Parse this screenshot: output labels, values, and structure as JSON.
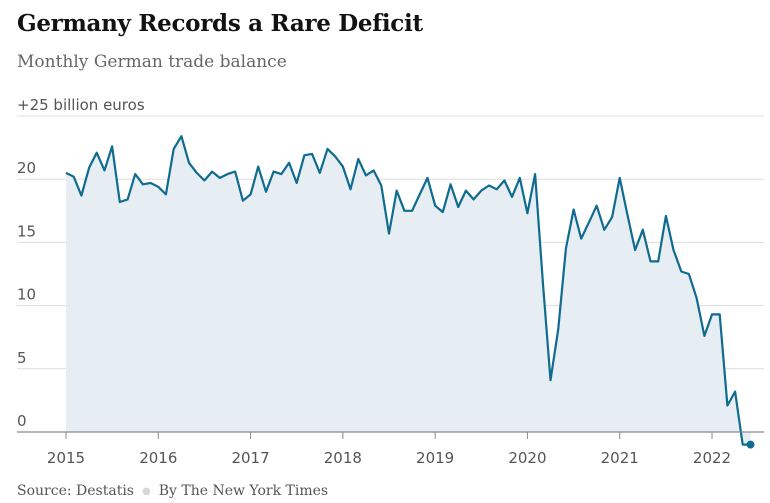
{
  "header": {
    "title": "Germany Records a Rare Deficit",
    "subtitle": "Monthly German trade balance"
  },
  "footer": {
    "source": "Source: Destatis",
    "credit": "By The New York Times"
  },
  "colors": {
    "line": "#0f6b8f",
    "area": "#e6eef3",
    "grid": "#dddddd",
    "zero_line": "#8a8a8a"
  },
  "chart_data": {
    "type": "area",
    "title": "Germany Records a Rare Deficit",
    "subtitle": "Monthly German trade balance",
    "xlabel": "",
    "ylabel": "billion euros",
    "ylim": [
      -1,
      25
    ],
    "xlim": [
      2015,
      2022.417
    ],
    "grid": true,
    "yticks": [
      {
        "value": 25,
        "label": "+25 billion euros"
      },
      {
        "value": 20,
        "label": "20"
      },
      {
        "value": 15,
        "label": "15"
      },
      {
        "value": 10,
        "label": "10"
      },
      {
        "value": 5,
        "label": "5"
      },
      {
        "value": 0,
        "label": "0"
      }
    ],
    "xticks": [
      {
        "value": 2015,
        "label": "2015"
      },
      {
        "value": 2016,
        "label": "2016"
      },
      {
        "value": 2017,
        "label": "2017"
      },
      {
        "value": 2018,
        "label": "2018"
      },
      {
        "value": 2019,
        "label": "2019"
      },
      {
        "value": 2020,
        "label": "2020"
      },
      {
        "value": 2021,
        "label": "2021"
      },
      {
        "value": 2022,
        "label": "2022"
      }
    ],
    "series": [
      {
        "name": "Monthly German trade balance",
        "start": "2015-01",
        "x": [
          2015.0,
          2015.083,
          2015.167,
          2015.25,
          2015.333,
          2015.417,
          2015.5,
          2015.583,
          2015.667,
          2015.75,
          2015.833,
          2015.917,
          2016.0,
          2016.083,
          2016.167,
          2016.25,
          2016.333,
          2016.417,
          2016.5,
          2016.583,
          2016.667,
          2016.75,
          2016.833,
          2016.917,
          2017.0,
          2017.083,
          2017.167,
          2017.25,
          2017.333,
          2017.417,
          2017.5,
          2017.583,
          2017.667,
          2017.75,
          2017.833,
          2017.917,
          2018.0,
          2018.083,
          2018.167,
          2018.25,
          2018.333,
          2018.417,
          2018.5,
          2018.583,
          2018.667,
          2018.75,
          2018.833,
          2018.917,
          2019.0,
          2019.083,
          2019.167,
          2019.25,
          2019.333,
          2019.417,
          2019.5,
          2019.583,
          2019.667,
          2019.75,
          2019.833,
          2019.917,
          2020.0,
          2020.083,
          2020.167,
          2020.25,
          2020.333,
          2020.417,
          2020.5,
          2020.583,
          2020.667,
          2020.75,
          2020.833,
          2020.917,
          2021.0,
          2021.083,
          2021.167,
          2021.25,
          2021.333,
          2021.417,
          2021.5,
          2021.583,
          2021.667,
          2021.75,
          2021.833,
          2021.917,
          2022.0,
          2022.083,
          2022.167,
          2022.25,
          2022.333,
          2022.417
        ],
        "values": [
          20.5,
          20.2,
          18.7,
          20.9,
          22.1,
          20.7,
          22.6,
          18.2,
          18.4,
          20.4,
          19.6,
          19.7,
          19.4,
          18.8,
          22.4,
          23.4,
          21.3,
          20.5,
          19.9,
          20.6,
          20.1,
          20.4,
          20.6,
          18.3,
          18.8,
          21.0,
          19.0,
          20.6,
          20.4,
          21.3,
          19.7,
          21.9,
          22.0,
          20.5,
          22.4,
          21.8,
          21.0,
          19.2,
          21.6,
          20.3,
          20.7,
          19.5,
          15.7,
          19.1,
          17.5,
          17.5,
          18.8,
          20.1,
          17.9,
          17.4,
          19.6,
          17.8,
          19.1,
          18.4,
          19.1,
          19.5,
          19.2,
          19.9,
          18.6,
          20.1,
          17.3,
          20.4,
          11.8,
          4.1,
          8.1,
          14.5,
          17.6,
          15.3,
          16.6,
          17.9,
          16.0,
          17.0,
          20.1,
          17.2,
          14.4,
          16.0,
          13.5,
          13.5,
          17.1,
          14.4,
          12.7,
          12.5,
          10.6,
          7.6,
          9.3,
          9.3,
          2.1,
          3.2,
          -1.0,
          -1.0
        ]
      }
    ],
    "final_marker": {
      "x": 2022.417,
      "value": -1.0
    }
  }
}
